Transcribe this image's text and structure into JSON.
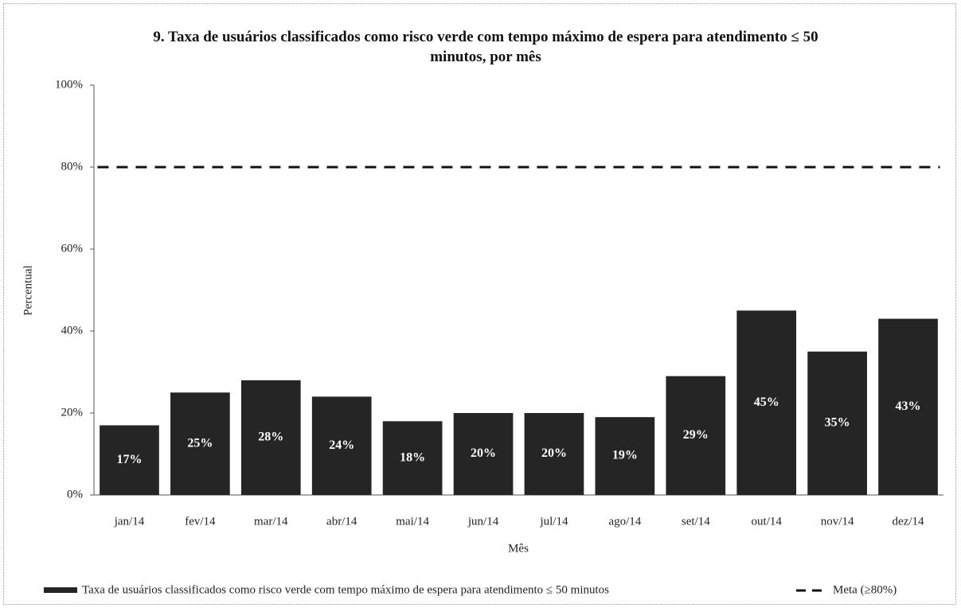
{
  "chart_data": {
    "type": "bar",
    "title": "9. Taxa de usuários classificados como risco verde com tempo máximo de espera para atendimento ≤ 50 minutos, por mês",
    "x_label": "Mês",
    "y_label": "Percentual",
    "categories": [
      "jan/14",
      "fev/14",
      "mar/14",
      "abr/14",
      "mai/14",
      "jun/14",
      "jul/14",
      "ago/14",
      "set/14",
      "out/14",
      "nov/14",
      "dez/14"
    ],
    "series": [
      {
        "name": "Taxa de usuários classificados como risco verde com tempo máximo de espera para atendimento ≤ 50 minutos",
        "type": "bar",
        "color": "#252525",
        "values": [
          17,
          25,
          28,
          24,
          18,
          20,
          20,
          19,
          29,
          45,
          35,
          43
        ],
        "value_labels": [
          "17%",
          "25%",
          "28%",
          "24%",
          "18%",
          "20%",
          "20%",
          "19%",
          "29%",
          "45%",
          "35%",
          "43%"
        ]
      },
      {
        "name": "Meta (≥80%)",
        "type": "line",
        "color": "#111111",
        "dashed": true,
        "values": [
          80,
          80,
          80,
          80,
          80,
          80,
          80,
          80,
          80,
          80,
          80,
          80
        ]
      }
    ],
    "ylim": [
      0,
      100
    ],
    "yticks": [
      {
        "value": 0,
        "label": "0%"
      },
      {
        "value": 20,
        "label": "20%"
      },
      {
        "value": 40,
        "label": "40%"
      },
      {
        "value": 60,
        "label": "60%"
      },
      {
        "value": 80,
        "label": "80%"
      },
      {
        "value": 100,
        "label": "100%"
      }
    ],
    "legend": "bottom"
  }
}
